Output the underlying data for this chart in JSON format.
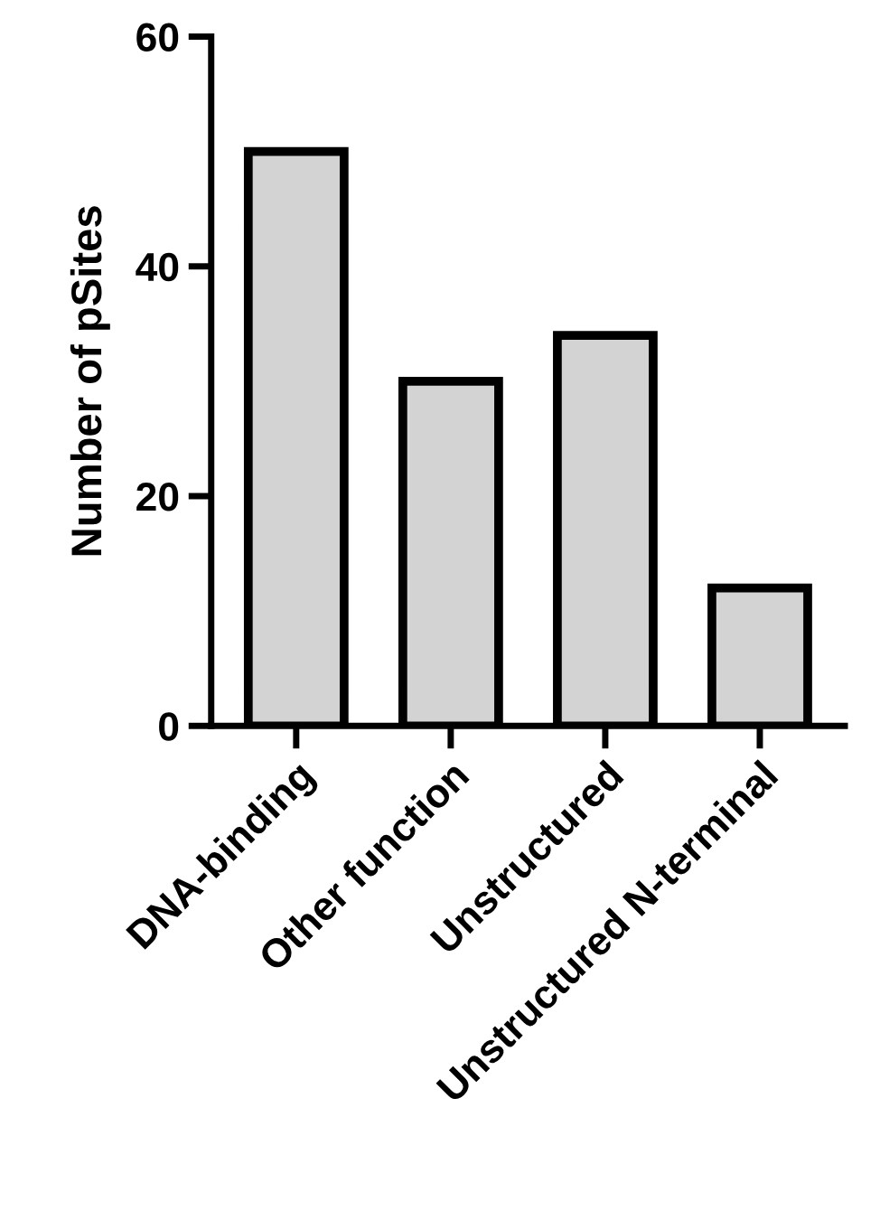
{
  "chart_data": {
    "type": "bar",
    "ylabel": "Number of pSites",
    "categories": [
      "DNA-binding",
      "Other function",
      "Unstructured",
      "Unstructured N-terminal"
    ],
    "values": [
      50,
      30,
      34,
      12
    ],
    "color": "#d3d3d3",
    "ylim": [
      0,
      60
    ],
    "yticks": [
      0,
      20,
      40,
      60
    ],
    "grid": false
  }
}
